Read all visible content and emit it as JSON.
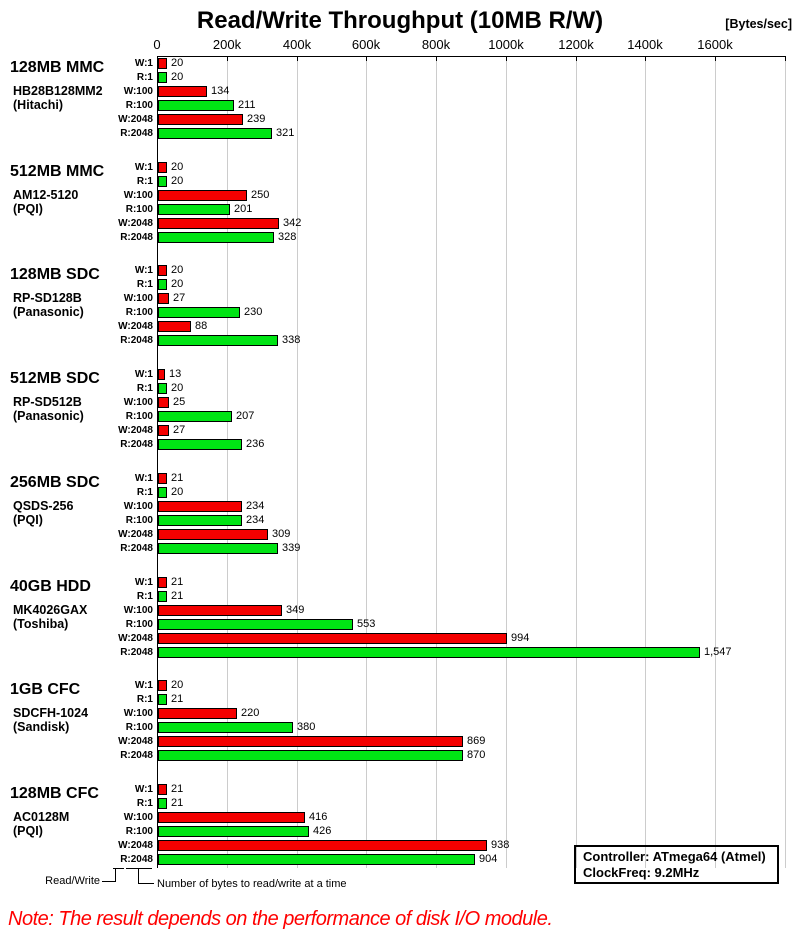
{
  "page": {
    "title": "Read/Write Throughput (10MB R/W)",
    "unit_label": "[Bytes/sec]",
    "note": "Note: The result depends on the performance of disk I/O module.",
    "legend": {
      "controller": "Controller: ATmega64 (Atmel)",
      "clockfreq": "ClockFreq: 9.2MHz"
    },
    "footnote": {
      "readwrite_label": "Read/Write",
      "bytes_label": "Number of bytes to read/write at a time"
    }
  },
  "chart_data": {
    "type": "bar",
    "orientation": "horizontal",
    "title": "Read/Write Throughput (10MB R/W)",
    "unit_label": "[Bytes/sec]",
    "x_axis": {
      "tick_labels": [
        "0",
        "200k",
        "400k",
        "600k",
        "800k",
        "1000k",
        "1200k",
        "1400k",
        "1600k"
      ],
      "tick_values_kbytes_per_sec": [
        0,
        200,
        400,
        600,
        800,
        1000,
        1200,
        1400,
        1600
      ],
      "axis_max_kbytes_per_sec": 1800,
      "grid": true
    },
    "row_labels": [
      "W:1",
      "R:1",
      "W:100",
      "R:100",
      "W:2048",
      "R:2048"
    ],
    "colors": {
      "write_bar": "#f40000",
      "read_bar": "#00e414",
      "gridline": "#cccccc",
      "axis": "#000000",
      "note_text": "#ff0000"
    },
    "groups": [
      {
        "name": "128MB MMC",
        "model": "HB28B128MM2",
        "maker": "(Hitachi)",
        "values_kbytes_per_sec": [
          20,
          20,
          134,
          211,
          239,
          321
        ]
      },
      {
        "name": "512MB MMC",
        "model": "AM12-5120",
        "maker": "(PQI)",
        "values_kbytes_per_sec": [
          20,
          20,
          250,
          201,
          342,
          328
        ]
      },
      {
        "name": "128MB SDC",
        "model": "RP-SD128B",
        "maker": "(Panasonic)",
        "values_kbytes_per_sec": [
          20,
          20,
          27,
          230,
          88,
          338
        ]
      },
      {
        "name": "512MB SDC",
        "model": "RP-SD512B",
        "maker": "(Panasonic)",
        "values_kbytes_per_sec": [
          13,
          20,
          25,
          207,
          27,
          236
        ]
      },
      {
        "name": "256MB SDC",
        "model": "QSDS-256",
        "maker": "(PQI)",
        "values_kbytes_per_sec": [
          21,
          20,
          234,
          234,
          309,
          339
        ]
      },
      {
        "name": "40GB HDD",
        "model": "MK4026GAX",
        "maker": "(Toshiba)",
        "values_kbytes_per_sec": [
          21,
          21,
          349,
          553,
          994,
          1547
        ]
      },
      {
        "name": "1GB CFC",
        "model": "SDCFH-1024",
        "maker": "(Sandisk)",
        "values_kbytes_per_sec": [
          20,
          21,
          220,
          380,
          869,
          870
        ]
      },
      {
        "name": "128MB CFC",
        "model": "AC0128M",
        "maker": "(PQI)",
        "values_kbytes_per_sec": [
          21,
          21,
          416,
          426,
          938,
          904
        ]
      }
    ]
  }
}
